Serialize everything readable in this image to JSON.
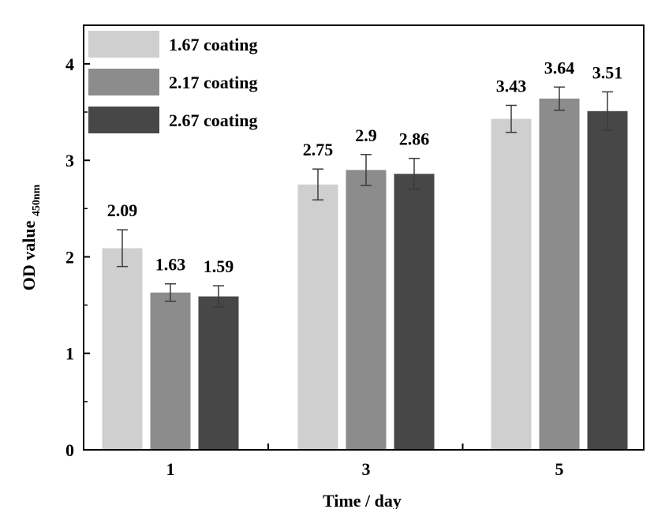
{
  "chart_data": {
    "type": "bar",
    "title": "",
    "xlabel": "Time / day",
    "ylabel_main": "OD value",
    "ylabel_sub": "450nm",
    "categories": [
      "1",
      "3",
      "5"
    ],
    "ylim": [
      0,
      4.4
    ],
    "yticks": [
      "0",
      "1",
      "2",
      "3",
      "4"
    ],
    "yticks_values": [
      0,
      1,
      2,
      3,
      4
    ],
    "grid": false,
    "legend_position": "top-left",
    "series": [
      {
        "name": "1.67 coating",
        "color": "#cfcfcf",
        "values": [
          2.09,
          2.75,
          3.43
        ],
        "labels": [
          "2.09",
          "2.75",
          "3.43"
        ],
        "errors": [
          0.19,
          0.16,
          0.14
        ]
      },
      {
        "name": "2.17 coating",
        "color": "#8c8c8c",
        "values": [
          1.63,
          2.9,
          3.64
        ],
        "labels": [
          "1.63",
          "2.9",
          "3.64"
        ],
        "errors": [
          0.09,
          0.16,
          0.12
        ]
      },
      {
        "name": "2.67 coating",
        "color": "#474747",
        "values": [
          1.59,
          2.86,
          3.51
        ],
        "labels": [
          "1.59",
          "2.86",
          "3.51"
        ],
        "errors": [
          0.11,
          0.16,
          0.2
        ]
      }
    ]
  }
}
